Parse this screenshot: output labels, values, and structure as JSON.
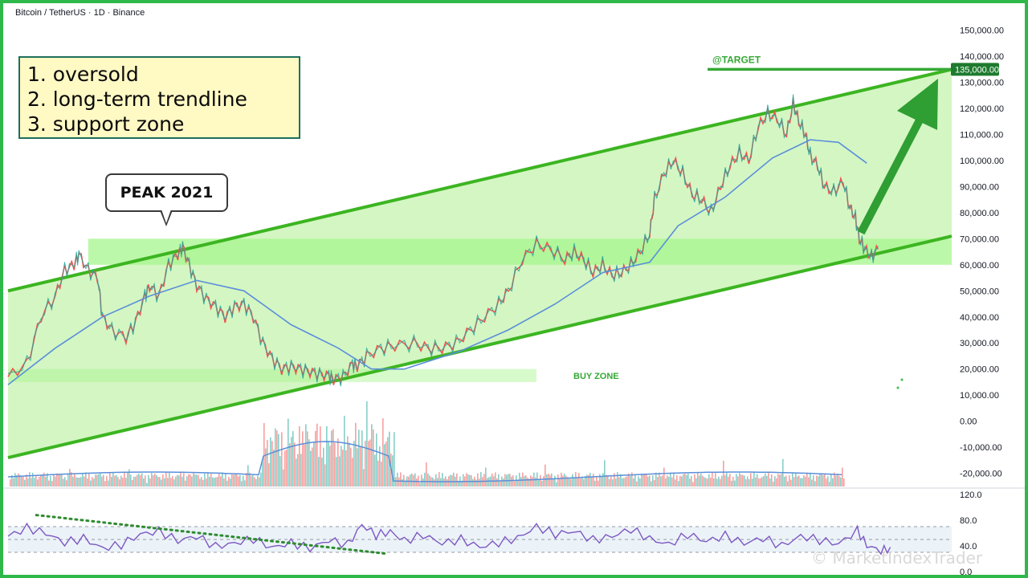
{
  "header": {
    "symbol_line": "Bitcoin / TetherUS · 1D · Binance"
  },
  "notes": [
    "1. oversold",
    "2. long-term trendline",
    "3. support zone"
  ],
  "callout": {
    "text": "PEAK 2021"
  },
  "annotations": {
    "target_label": "@TARGET",
    "buy_zone_label": "BUY ZONE"
  },
  "watermark": "© MarketIndexTrader",
  "colors": {
    "channel_line": "#3cb521",
    "channel_fill": "#ccf5b8",
    "zone_fill": "#a6f58c",
    "target_line": "#35a834",
    "arrow": "#2f9e33",
    "candle_up": "#26a69a",
    "candle_down": "#ef5350",
    "moving_average": "#5b8fd9",
    "rsi_line": "#7e57c2",
    "rsi_band": "#e6f0f7",
    "rsi_trendline": "#2e8b2e",
    "target_badge": "#1e7a2e",
    "frame": "#2fb84a"
  },
  "chart_data": [
    {
      "type": "line",
      "title": "Bitcoin / TetherUS · 1D · Binance",
      "y_axis_position": "right",
      "yticks": [
        150000,
        140000,
        130000,
        120000,
        110000,
        100000,
        90000,
        80000,
        70000,
        60000,
        50000,
        40000,
        30000,
        20000,
        10000,
        0,
        -10000,
        -20000
      ],
      "ytick_labels": [
        "150,000.00",
        "140,000.00",
        "130,000.00",
        "120,000.00",
        "110,000.00",
        "100,000.00",
        "90,000.00",
        "80,000.00",
        "70,000.00",
        "60,000.00",
        "50,000.00",
        "40,000.00",
        "30,000.00",
        "20,000.00",
        "10,000.00",
        "0.00",
        "-10,000.00",
        "-20,000.00"
      ],
      "ylim": [
        -22000,
        153000
      ],
      "xlim": [
        0,
        1000
      ],
      "series": [
        {
          "values_xy": [
            [
              0,
              17000
            ],
            [
              20,
              22000
            ],
            [
              35,
              40000
            ],
            [
              50,
              48000
            ],
            [
              60,
              58000
            ],
            [
              70,
              60000
            ],
            [
              75,
              64000
            ],
            [
              85,
              58000
            ],
            [
              95,
              55000
            ],
            [
              100,
              40000
            ],
            [
              110,
              35000
            ],
            [
              125,
              32000
            ],
            [
              135,
              38000
            ],
            [
              145,
              48000
            ],
            [
              150,
              52000
            ],
            [
              160,
              48000
            ],
            [
              170,
              60000
            ],
            [
              180,
              64000
            ],
            [
              185,
              67000
            ],
            [
              192,
              60000
            ],
            [
              200,
              52000
            ],
            [
              210,
              47000
            ],
            [
              220,
              44000
            ],
            [
              230,
              40000
            ],
            [
              240,
              44000
            ],
            [
              250,
              45000
            ],
            [
              260,
              40000
            ],
            [
              270,
              30000
            ],
            [
              280,
              24000
            ],
            [
              290,
              20000
            ],
            [
              300,
              21000
            ],
            [
              310,
              20000
            ],
            [
              320,
              19000
            ],
            [
              330,
              18000
            ],
            [
              340,
              17500
            ],
            [
              345,
              16000
            ],
            [
              355,
              17000
            ],
            [
              365,
              22000
            ],
            [
              370,
              21000
            ],
            [
              380,
              25000
            ],
            [
              395,
              28000
            ],
            [
              410,
              29000
            ],
            [
              430,
              30000
            ],
            [
              445,
              28000
            ],
            [
              460,
              28000
            ],
            [
              475,
              30000
            ],
            [
              490,
              35000
            ],
            [
              505,
              40000
            ],
            [
              520,
              45000
            ],
            [
              530,
              50000
            ],
            [
              545,
              62000
            ],
            [
              560,
              68000
            ],
            [
              575,
              66000
            ],
            [
              590,
              62000
            ],
            [
              600,
              65000
            ],
            [
              610,
              62000
            ],
            [
              620,
              57000
            ],
            [
              630,
              60000
            ],
            [
              640,
              56000
            ],
            [
              650,
              57000
            ],
            [
              660,
              60000
            ],
            [
              670,
              65000
            ],
            [
              680,
              72000
            ],
            [
              685,
              85000
            ],
            [
              695,
              95000
            ],
            [
              705,
              100000
            ],
            [
              715,
              95000
            ],
            [
              725,
              87000
            ],
            [
              735,
              85000
            ],
            [
              745,
              80000
            ],
            [
              755,
              90000
            ],
            [
              765,
              98000
            ],
            [
              775,
              103000
            ],
            [
              785,
              100000
            ],
            [
              795,
              113000
            ],
            [
              805,
              118000
            ],
            [
              815,
              116000
            ],
            [
              825,
              110000
            ],
            [
              832,
              122000
            ],
            [
              838,
              115000
            ],
            [
              845,
              110000
            ],
            [
              850,
              102000
            ],
            [
              858,
              98000
            ],
            [
              865,
              90000
            ],
            [
              875,
              88000
            ],
            [
              885,
              92000
            ],
            [
              892,
              82000
            ],
            [
              898,
              78000
            ],
            [
              902,
              70000
            ],
            [
              908,
              66000
            ],
            [
              915,
              63000
            ],
            [
              922,
              66000
            ]
          ]
        },
        {
          "name": "",
          "values_xy": [
            [
              0,
              14000
            ],
            [
              50,
              28000
            ],
            [
              100,
              40000
            ],
            [
              150,
              48000
            ],
            [
              200,
              54000
            ],
            [
              250,
              50000
            ],
            [
              300,
              37000
            ],
            [
              350,
              28000
            ],
            [
              385,
              20000
            ],
            [
              420,
              20000
            ],
            [
              480,
              27000
            ],
            [
              530,
              35000
            ],
            [
              580,
              45000
            ],
            [
              630,
              57000
            ],
            [
              680,
              61000
            ],
            [
              710,
              75000
            ],
            [
              760,
              86000
            ],
            [
              810,
              101000
            ],
            [
              850,
              108000
            ],
            [
              880,
              107000
            ],
            [
              910,
              99000
            ]
          ]
        }
      ],
      "channel": {
        "upper_line": [
          [
            0,
            50000
          ],
          [
            1000,
            135000
          ]
        ],
        "lower_line": [
          [
            0,
            -14000
          ],
          [
            1000,
            71000
          ]
        ]
      },
      "zones": [
        {
          "label": "",
          "x_from": 85,
          "x_to": 1000,
          "y_from": 60000,
          "y_to": 70000
        },
        {
          "label": "BUY ZONE",
          "x_from": 0,
          "x_to": 560,
          "y_from": 15000,
          "y_to": 20000
        }
      ],
      "target": {
        "label": "@TARGET",
        "value": 135000,
        "value_label": "135,000.00"
      }
    },
    {
      "type": "line",
      "title": "",
      "yticks": [
        120,
        80,
        40,
        0
      ],
      "ytick_labels": [
        "120.0",
        "80.0",
        "40.0",
        "0.0"
      ],
      "ylim": [
        0,
        125
      ],
      "guide_levels": [
        70,
        50,
        30
      ],
      "xlim": [
        0,
        1000
      ],
      "series": [
        {
          "values_xy": [
            [
              0,
              55
            ],
            [
              20,
              68
            ],
            [
              40,
              60
            ],
            [
              60,
              45
            ],
            [
              80,
              52
            ],
            [
              100,
              36
            ],
            [
              120,
              42
            ],
            [
              140,
              58
            ],
            [
              160,
              63
            ],
            [
              180,
              48
            ],
            [
              200,
              55
            ],
            [
              220,
              39
            ],
            [
              240,
              44
            ],
            [
              260,
              51
            ],
            [
              280,
              37
            ],
            [
              300,
              45
            ],
            [
              320,
              36
            ],
            [
              340,
              49
            ],
            [
              360,
              42
            ],
            [
              375,
              73
            ],
            [
              390,
              57
            ],
            [
              405,
              62
            ],
            [
              420,
              48
            ],
            [
              440,
              57
            ],
            [
              460,
              44
            ],
            [
              480,
              50
            ],
            [
              500,
              38
            ],
            [
              520,
              45
            ],
            [
              540,
              52
            ],
            [
              560,
              70
            ],
            [
              580,
              58
            ],
            [
              600,
              63
            ],
            [
              620,
              49
            ],
            [
              640,
              55
            ],
            [
              660,
              66
            ],
            [
              680,
              51
            ],
            [
              700,
              42
            ],
            [
              720,
              58
            ],
            [
              740,
              47
            ],
            [
              760,
              56
            ],
            [
              780,
              44
            ],
            [
              800,
              52
            ],
            [
              820,
              40
            ],
            [
              840,
              55
            ],
            [
              860,
              49
            ],
            [
              880,
              43
            ],
            [
              900,
              64
            ],
            [
              910,
              41
            ],
            [
              925,
              32
            ],
            [
              935,
              38
            ]
          ]
        }
      ],
      "trendlines": [
        {
          "from": [
            30,
            88
          ],
          "to": [
            400,
            28
          ]
        }
      ]
    }
  ]
}
